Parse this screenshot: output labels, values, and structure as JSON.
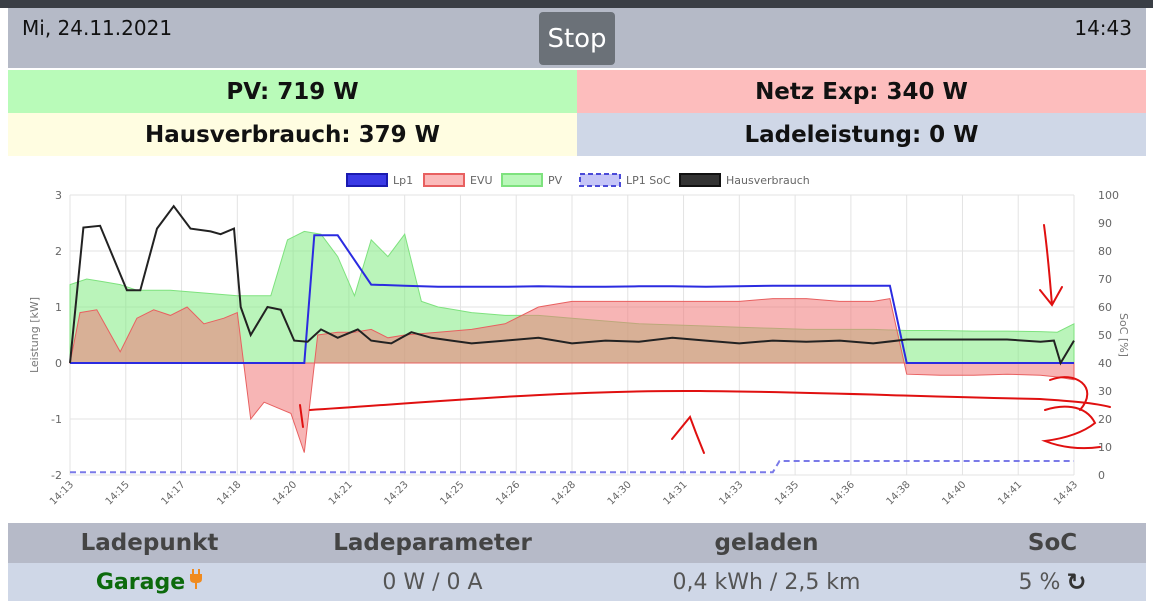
{
  "header": {
    "date": "Mi, 24.11.2021",
    "time": "14:43",
    "stop_label": "Stop"
  },
  "tiles": {
    "pv": {
      "label": "PV:",
      "value": "719 W"
    },
    "netz": {
      "label": "Netz Exp:",
      "value": "340 W"
    },
    "hausverbrauch": {
      "label": "Hausverbrauch:",
      "value": "379 W"
    },
    "ladeleistung": {
      "label": "Ladeleistung:",
      "value": "0 W"
    }
  },
  "colors": {
    "pv": "#b9fbb9",
    "netz": "#fdbdbd",
    "haus": "#fffde1",
    "lade": "#cfd7e7",
    "header": "#b5bac7"
  },
  "chart_data": {
    "type": "line",
    "legend": [
      "Lp1",
      "EVU",
      "PV",
      "LP1 SoC",
      "Hausverbrauch"
    ],
    "legend_position": "top",
    "ylabel": "Leistung [kW]",
    "y2label": "SoC [%]",
    "ylim": [
      -2,
      3
    ],
    "y2lim": [
      0,
      100
    ],
    "y_ticks": [
      "3",
      "2",
      "1",
      "0",
      "-1",
      "-2"
    ],
    "y2_ticks": [
      "100",
      "90",
      "80",
      "70",
      "60",
      "50",
      "40",
      "30",
      "20",
      "10",
      "0"
    ],
    "x_ticks": [
      "14:13",
      "14:15",
      "14:17",
      "14:18",
      "14:20",
      "14:21",
      "14:23",
      "14:25",
      "14:26",
      "14:28",
      "14:30",
      "14:31",
      "14:33",
      "14:35",
      "14:36",
      "14:38",
      "14:40",
      "14:41",
      "14:43"
    ],
    "x_min": 0,
    "x_max": 30,
    "series": [
      {
        "name": "Lp1",
        "color": "#2b2be0",
        "x": [
          0,
          4.2,
          4.4,
          5.5,
          7.0,
          7.3,
          8.0,
          9.0,
          10.0,
          11.0,
          12.0,
          13.0,
          14.0,
          15.0,
          16.0,
          17.0,
          18.0,
          19.0,
          20.0,
          21.0,
          22.0,
          23.0,
          24.0,
          24.5,
          25.0,
          26.0,
          27.0,
          28.0,
          29.0,
          30.0
        ],
        "y": [
          0,
          0,
          0,
          0,
          0,
          2.28,
          2.28,
          1.4,
          1.38,
          1.36,
          1.36,
          1.36,
          1.37,
          1.36,
          1.36,
          1.37,
          1.37,
          1.36,
          1.37,
          1.38,
          1.38,
          1.38,
          1.38,
          1.38,
          0,
          0,
          0,
          0,
          0,
          0
        ]
      },
      {
        "name": "EVU",
        "color": "#e86060",
        "x": [
          0,
          0.3,
          0.8,
          1.5,
          2.0,
          2.5,
          3.0,
          3.5,
          4.0,
          4.6,
          5.0,
          5.4,
          5.8,
          6.2,
          6.6,
          7.0,
          7.4,
          8.0,
          8.5,
          9.0,
          9.5,
          10.0,
          11.0,
          12.0,
          13.0,
          14.0,
          15.0,
          16.0,
          17.0,
          18.0,
          19.0,
          20.0,
          21.0,
          22.0,
          23.0,
          24.0,
          24.5,
          25.0,
          26.0,
          27.0,
          28.0,
          29.0,
          29.5,
          30.0
        ],
        "y": [
          0,
          0.9,
          0.95,
          0.2,
          0.8,
          0.95,
          0.85,
          1.0,
          0.7,
          0.8,
          0.9,
          -1.0,
          -0.7,
          -0.8,
          -0.9,
          -1.6,
          0.5,
          0.55,
          0.55,
          0.6,
          0.45,
          0.5,
          0.55,
          0.6,
          0.7,
          1.0,
          1.1,
          1.1,
          1.1,
          1.1,
          1.1,
          1.1,
          1.15,
          1.15,
          1.1,
          1.1,
          1.15,
          -0.2,
          -0.22,
          -0.22,
          -0.2,
          -0.22,
          -0.25,
          -0.3
        ]
      },
      {
        "name": "PV",
        "color": "#7ee27e",
        "x": [
          0,
          0.5,
          1.0,
          1.5,
          2.0,
          3.0,
          4.0,
          5.0,
          6.0,
          6.5,
          7.0,
          7.5,
          8.0,
          8.5,
          9.0,
          9.5,
          10.0,
          10.5,
          11.0,
          11.5,
          12.0,
          13.0,
          14.0,
          15.0,
          16.0,
          17.0,
          18.0,
          19.0,
          20.0,
          21.0,
          22.0,
          23.0,
          24.0,
          25.0,
          26.0,
          27.0,
          28.0,
          29.0,
          29.5,
          30.0
        ],
        "y": [
          1.4,
          1.5,
          1.45,
          1.4,
          1.3,
          1.3,
          1.25,
          1.2,
          1.2,
          2.2,
          2.35,
          2.3,
          1.9,
          1.2,
          2.2,
          1.9,
          2.3,
          1.1,
          1.0,
          0.95,
          0.9,
          0.85,
          0.85,
          0.8,
          0.75,
          0.7,
          0.68,
          0.66,
          0.64,
          0.62,
          0.6,
          0.6,
          0.6,
          0.58,
          0.58,
          0.57,
          0.57,
          0.56,
          0.55,
          0.7
        ]
      },
      {
        "name": "LP1 SoC",
        "color": "#7a7ae8",
        "dashed": true,
        "axis": "right",
        "x": [
          0,
          10,
          20.5,
          21.0,
          21.2,
          25,
          30
        ],
        "y": [
          1,
          1,
          1,
          1,
          5,
          5,
          5
        ]
      },
      {
        "name": "Hausverbrauch",
        "color": "#222222",
        "x": [
          0,
          0.4,
          0.9,
          1.7,
          2.1,
          2.6,
          3.1,
          3.6,
          4.2,
          4.5,
          4.9,
          5.1,
          5.4,
          5.9,
          6.3,
          6.7,
          7.1,
          7.5,
          8.0,
          8.6,
          9.0,
          9.6,
          10.2,
          10.8,
          11.4,
          12.0,
          13.0,
          14.0,
          15.0,
          16.0,
          17.0,
          18.0,
          19.0,
          20.0,
          21.0,
          22.0,
          23.0,
          24.0,
          25.0,
          26.0,
          27.0,
          28.0,
          29.0,
          29.4,
          29.6,
          30.0
        ],
        "y": [
          0,
          2.42,
          2.45,
          1.3,
          1.3,
          2.4,
          2.8,
          2.4,
          2.35,
          2.3,
          2.4,
          1.0,
          0.5,
          1.0,
          0.95,
          0.4,
          0.38,
          0.6,
          0.45,
          0.6,
          0.4,
          0.35,
          0.55,
          0.45,
          0.4,
          0.35,
          0.4,
          0.45,
          0.35,
          0.4,
          0.38,
          0.45,
          0.4,
          0.35,
          0.4,
          0.38,
          0.4,
          0.35,
          0.42,
          0.42,
          0.42,
          0.42,
          0.38,
          0.4,
          0.0,
          0.4
        ]
      }
    ]
  },
  "table": {
    "headers": [
      "Ladepunkt",
      "Ladeparameter",
      "geladen",
      "SoC"
    ],
    "row": {
      "name": "Garage",
      "parameter": "0 W / 0 A",
      "geladen": "0,4 kWh / 2,5 km",
      "soc": "5 %"
    }
  },
  "icons": {
    "plug": "plug-icon",
    "refresh": "refresh-icon"
  }
}
